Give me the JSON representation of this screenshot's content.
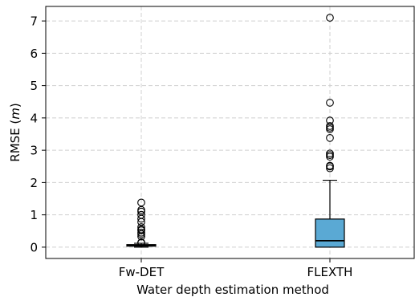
{
  "chart_data": {
    "type": "boxplot",
    "title": "",
    "xlabel": "Water depth estimation method",
    "ylabel": "RMSE (m)",
    "ylabel_parts": {
      "prefix": "RMSE (",
      "unit": "m",
      "suffix": ")"
    },
    "ylim": [
      -0.35,
      7.45
    ],
    "yticks": [
      0,
      1,
      2,
      3,
      4,
      5,
      6,
      7
    ],
    "grid": true,
    "categories": [
      "Fw-DET",
      "FLEXTH"
    ],
    "series": [
      {
        "category": "Fw-DET",
        "whisker_low": 0.0,
        "q1": 0.03,
        "median": 0.06,
        "q3": 0.08,
        "whisker_high": 0.12,
        "fill": "#1f5f8b",
        "outliers": [
          0.13,
          0.15,
          0.33,
          0.4,
          0.45,
          0.52,
          0.55,
          0.62,
          0.78,
          0.88,
          1.0,
          1.1,
          1.15,
          1.38
        ]
      },
      {
        "category": "FLEXTH",
        "whisker_low": 0.0,
        "q1": 0.0,
        "median": 0.2,
        "q3": 0.87,
        "whisker_high": 2.07,
        "fill": "#5aa9d4",
        "outliers": [
          2.44,
          2.5,
          2.52,
          2.8,
          2.85,
          2.9,
          3.38,
          3.65,
          3.7,
          3.75,
          3.92,
          4.47,
          7.1
        ]
      }
    ]
  }
}
